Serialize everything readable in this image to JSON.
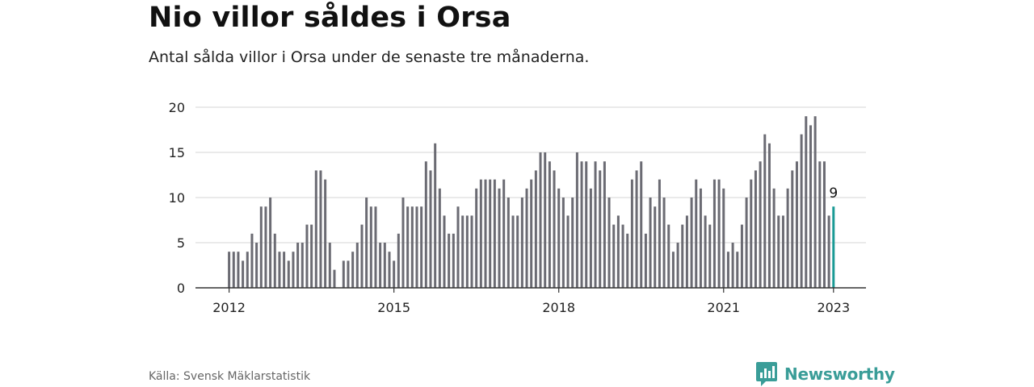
{
  "title": "Nio villor såldes i Orsa",
  "subtitle": "Antal sålda villor i Orsa under de senaste tre månaderna.",
  "source": "Källa: Svensk Mäklarstatistik",
  "brand": {
    "name": "Newsworthy",
    "logo_icon": "newsworthy-bar-chart-logo-icon"
  },
  "colors": {
    "bar": "#6b6b73",
    "highlight": "#1a9a95",
    "grid": "#dddddd",
    "axis": "#333333",
    "brand": "#3a9d98"
  },
  "chart_data": {
    "type": "bar",
    "title": "",
    "xlabel": "",
    "ylabel": "",
    "ylim": [
      0,
      20
    ],
    "yticks": [
      0,
      5,
      10,
      15,
      20
    ],
    "xticks": [
      "2012",
      "2015",
      "2018",
      "2021",
      "2023"
    ],
    "grid": true,
    "highlight_label": "9",
    "x_start": "2012-01",
    "x_end": "2023-01",
    "series": [
      {
        "values": [
          4,
          4,
          4,
          3,
          4,
          6,
          5,
          9,
          9,
          10,
          6,
          4,
          4,
          3,
          4,
          5,
          5,
          7,
          7,
          13,
          13,
          12,
          5,
          2,
          null,
          3,
          3,
          4,
          5,
          7,
          10,
          9,
          9,
          5,
          5,
          4,
          3,
          6,
          10,
          9,
          9,
          9,
          9,
          14,
          13,
          16,
          11,
          8,
          6,
          6,
          9,
          8,
          8,
          8,
          11,
          12,
          12,
          12,
          12,
          11,
          12,
          10,
          8,
          8,
          10,
          11,
          12,
          13,
          15,
          15,
          14,
          13,
          11,
          10,
          8,
          10,
          15,
          14,
          14,
          11,
          14,
          13,
          14,
          10,
          7,
          8,
          7,
          6,
          12,
          13,
          14,
          6,
          10,
          9,
          12,
          10,
          7,
          4,
          5,
          7,
          8,
          10,
          12,
          11,
          8,
          7,
          12,
          12,
          11,
          4,
          5,
          4,
          7,
          10,
          12,
          13,
          14,
          17,
          16,
          11,
          8,
          8,
          11,
          13,
          14,
          17,
          19,
          18,
          19,
          14,
          14,
          8,
          9
        ]
      }
    ]
  }
}
